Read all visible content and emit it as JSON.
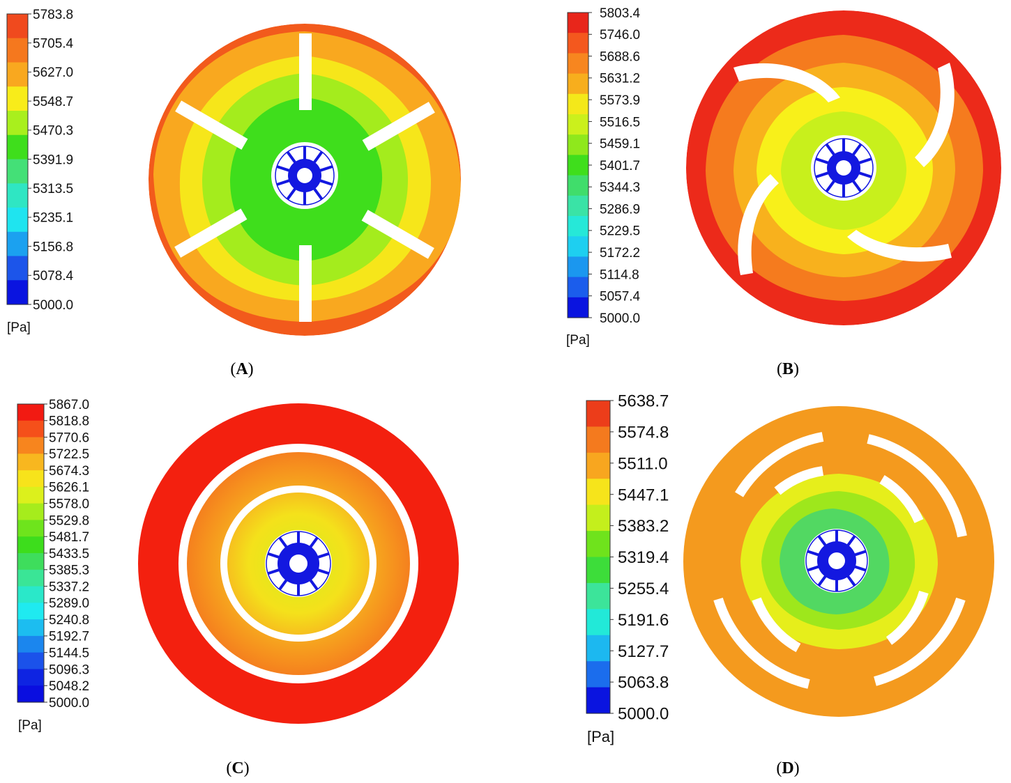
{
  "panels": [
    {
      "id": "A",
      "caption_letter": "A",
      "unit": "[Pa]",
      "legend_ticks": [
        "5783.8",
        "5705.4",
        "5627.0",
        "5548.7",
        "5470.3",
        "5391.9",
        "5313.5",
        "5235.1",
        "5156.8",
        "5078.4",
        "5000.0"
      ],
      "legend_colors": [
        "#f04a1e",
        "#f5781e",
        "#f9a81f",
        "#f8ec1a",
        "#a9ef1d",
        "#3fde1c",
        "#44e077",
        "#2fe6c3",
        "#1fe4ef",
        "#1ba1f0",
        "#1c55ea",
        "#0a14e0"
      ],
      "rotor": "straight-blades-6",
      "zones": [
        "#f25a1c",
        "#f9a81f",
        "#f6e61a",
        "#a4ec1d",
        "#3fde1c"
      ]
    },
    {
      "id": "B",
      "caption_letter": "B",
      "unit": "[Pa]",
      "legend_ticks": [
        "5803.4",
        "5746.0",
        "5688.6",
        "5631.2",
        "5573.9",
        "5516.5",
        "5459.1",
        "5401.7",
        "5344.3",
        "5286.9",
        "5229.5",
        "5172.2",
        "5114.8",
        "5057.4",
        "5000.0"
      ],
      "legend_colors": [
        "#e8261b",
        "#f4581e",
        "#f7861f",
        "#f7ae1d",
        "#f4e81a",
        "#cbf01c",
        "#8fe81c",
        "#3fde1c",
        "#40dd6b",
        "#3ae3a6",
        "#26e8d8",
        "#1ecff0",
        "#1b97ef",
        "#1b5dec",
        "#0a14e0"
      ],
      "rotor": "curved-blades-4",
      "zones": [
        "#ec2a1a",
        "#f57b1e",
        "#f8b11d",
        "#f8f01a",
        "#c8f01c"
      ]
    },
    {
      "id": "C",
      "caption_letter": "C",
      "unit": "[Pa]",
      "legend_ticks": [
        "5867.0",
        "5818.8",
        "5770.6",
        "5722.5",
        "5674.3",
        "5626.1",
        "5578.0",
        "5529.8",
        "5481.7",
        "5433.5",
        "5385.3",
        "5337.2",
        "5289.0",
        "5240.8",
        "5192.7",
        "5144.5",
        "5096.3",
        "5048.2",
        "5000.0"
      ],
      "legend_colors": [
        "#f21a12",
        "#f5501a",
        "#f7851e",
        "#f8b71f",
        "#f7e31b",
        "#dcf01c",
        "#a6ec1c",
        "#6ee41c",
        "#3ddd1c",
        "#3edd5c",
        "#3ae596",
        "#2ae8c9",
        "#1feaf0",
        "#1cbdf0",
        "#1b86ee",
        "#1b52ea",
        "#0e24e2",
        "#0a0ee0"
      ],
      "rotor": "concentric-rings",
      "zones": [
        "#f3200f",
        "#f6a51e",
        "#f3e51b"
      ]
    },
    {
      "id": "D",
      "caption_letter": "D",
      "unit": "[Pa]",
      "legend_ticks": [
        "5638.7",
        "5574.8",
        "5511.0",
        "5447.1",
        "5383.2",
        "5319.4",
        "5255.4",
        "5191.6",
        "5127.7",
        "5063.8",
        "5000.0"
      ],
      "legend_colors": [
        "#ec3d1a",
        "#f47a1e",
        "#f8a61f",
        "#f6e41b",
        "#c4ef1c",
        "#6fe31c",
        "#3ddd3a",
        "#3ce49a",
        "#22e9d8",
        "#1cb8f0",
        "#1b6ded",
        "#0a14e0"
      ],
      "rotor": "segmented-rings",
      "zones": [
        "#f49a1e",
        "#e6ee1b",
        "#9ee71c",
        "#52d862"
      ]
    }
  ]
}
